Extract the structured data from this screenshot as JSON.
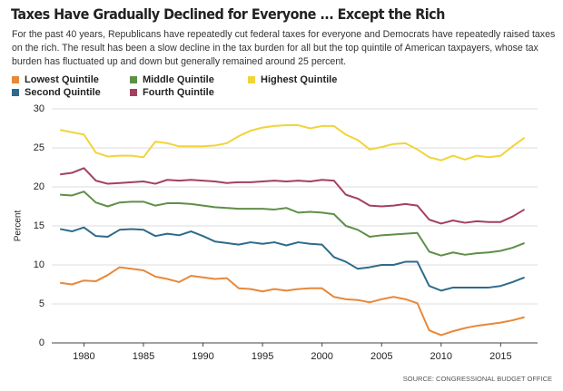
{
  "chart_data": {
    "type": "line",
    "title": "Taxes Have Gradually Declined for Everyone ... Except the Rich",
    "subtitle": "For the past 40 years, Republicans have repeatedly cut federal taxes for everyone and Democrats have repeatedly raised taxes on the rich. The result has been a slow decline in the tax burden for all but the top quintile of American taxpayers, whose tax burden has fluctuated up and down but generally remained around 25 percent.",
    "y_label": "Percent",
    "source": "SOURCE: CONGRESSIONAL BUDGET OFFICE",
    "x": [
      1978,
      1979,
      1980,
      1981,
      1982,
      1983,
      1984,
      1985,
      1986,
      1987,
      1988,
      1989,
      1990,
      1991,
      1992,
      1993,
      1994,
      1995,
      1996,
      1997,
      1998,
      1999,
      2000,
      2001,
      2002,
      2003,
      2004,
      2005,
      2006,
      2007,
      2008,
      2009,
      2010,
      2011,
      2012,
      2013,
      2014,
      2015,
      2016,
      2017
    ],
    "series": [
      {
        "name": "Lowest Quintile",
        "color": "#e8883a",
        "values": [
          7.7,
          7.5,
          8.0,
          7.9,
          8.7,
          9.7,
          9.5,
          9.3,
          8.5,
          8.2,
          7.8,
          8.6,
          8.4,
          8.2,
          8.3,
          7.0,
          6.9,
          6.6,
          6.9,
          6.7,
          6.9,
          7.0,
          7.0,
          5.9,
          5.6,
          5.5,
          5.2,
          5.6,
          5.9,
          5.6,
          5.1,
          1.6,
          1.0,
          1.5,
          1.9,
          2.2,
          2.4,
          2.6,
          2.9,
          3.3
        ]
      },
      {
        "name": "Second Quintile",
        "color": "#2e6b8a",
        "values": [
          14.6,
          14.3,
          14.8,
          13.7,
          13.6,
          14.5,
          14.6,
          14.5,
          13.7,
          14.0,
          13.8,
          14.3,
          13.7,
          13.0,
          12.8,
          12.6,
          12.9,
          12.7,
          12.9,
          12.5,
          12.9,
          12.7,
          12.6,
          11.0,
          10.4,
          9.5,
          9.7,
          10.0,
          10.0,
          10.4,
          10.4,
          7.3,
          6.7,
          7.1,
          7.1,
          7.1,
          7.1,
          7.3,
          7.8,
          8.4
        ]
      },
      {
        "name": "Middle Quintile",
        "color": "#5e8f48",
        "values": [
          19.0,
          18.9,
          19.4,
          18.0,
          17.5,
          18.0,
          18.1,
          18.1,
          17.6,
          17.9,
          17.9,
          17.8,
          17.6,
          17.4,
          17.3,
          17.2,
          17.2,
          17.2,
          17.1,
          17.3,
          16.7,
          16.8,
          16.7,
          16.5,
          15.0,
          14.5,
          13.6,
          13.8,
          13.9,
          14.0,
          14.1,
          11.7,
          11.2,
          11.6,
          11.3,
          11.5,
          11.6,
          11.8,
          12.2,
          12.8
        ]
      },
      {
        "name": "Fourth Quintile",
        "color": "#a3405e",
        "values": [
          21.6,
          21.8,
          22.4,
          20.8,
          20.4,
          20.5,
          20.6,
          20.7,
          20.4,
          20.9,
          20.8,
          20.9,
          20.8,
          20.7,
          20.5,
          20.6,
          20.6,
          20.7,
          20.8,
          20.7,
          20.8,
          20.7,
          20.9,
          20.8,
          19.0,
          18.5,
          17.6,
          17.5,
          17.6,
          17.8,
          17.6,
          15.8,
          15.3,
          15.7,
          15.4,
          15.6,
          15.5,
          15.5,
          16.2,
          17.1
        ]
      },
      {
        "name": "Highest Quintile",
        "color": "#f0d43a",
        "values": [
          27.3,
          27.0,
          26.7,
          24.4,
          23.9,
          24.0,
          24.0,
          23.8,
          25.8,
          25.6,
          25.2,
          25.2,
          25.2,
          25.3,
          25.6,
          26.5,
          27.2,
          27.6,
          27.8,
          27.9,
          27.9,
          27.5,
          27.8,
          27.8,
          26.7,
          26.0,
          24.8,
          25.1,
          25.5,
          25.6,
          24.8,
          23.8,
          23.4,
          24.0,
          23.5,
          24.0,
          23.8,
          24.0,
          25.2,
          26.3
        ]
      }
    ],
    "xlim": [
      1977.3,
      2018.1
    ],
    "xticks": [
      1980,
      1985,
      1990,
      1995,
      2000,
      2005,
      2010,
      2015
    ],
    "ylim": [
      0,
      30
    ],
    "yticks": [
      0,
      5,
      10,
      15,
      20,
      25,
      30
    ],
    "grid": true
  }
}
